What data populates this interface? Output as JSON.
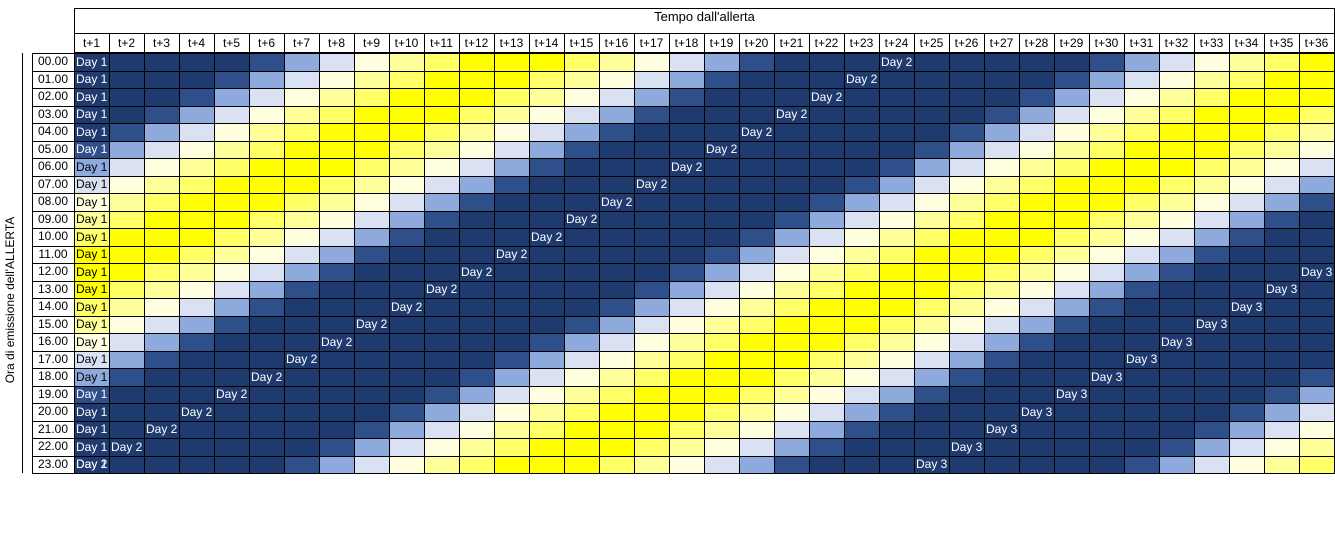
{
  "title": "Tempo dall'allerta",
  "y_axis_label": "Ora di emissione dell'ALLERTA",
  "column_headers": [
    "t+1",
    "t+2",
    "t+3",
    "t+4",
    "t+5",
    "t+6",
    "t+7",
    "t+8",
    "t+9",
    "t+10",
    "t+11",
    "t+12",
    "t+13",
    "t+14",
    "t+15",
    "t+16",
    "t+17",
    "t+18",
    "t+19",
    "t+20",
    "t+21",
    "t+22",
    "t+23",
    "t+24",
    "t+25",
    "t+26",
    "t+27",
    "t+28",
    "t+29",
    "t+30",
    "t+31",
    "t+32",
    "t+33",
    "t+34",
    "t+35",
    "t+36"
  ],
  "row_headers": [
    "00.00",
    "01.00",
    "02.00",
    "03.00",
    "04.00",
    "05.00",
    "06.00",
    "07.00",
    "08.00",
    "09.00",
    "10.00",
    "11.00",
    "12.00",
    "13.00",
    "14.00",
    "15.00",
    "16.00",
    "17.00",
    "18.00",
    "19.00",
    "20.00",
    "21.00",
    "22.00",
    "23.00"
  ],
  "day_labels": [
    "Day 1",
    "Day 2",
    "Day 3"
  ],
  "colors": {
    "hour_shades": [
      "#1f3a6e",
      "#1f3a6e",
      "#1f3a6e",
      "#1f3a6e",
      "#1f3a6e",
      "#1f3a6e",
      "#1f3a6e",
      "#1f3a6e",
      "#1f3a6e",
      "#1f3a6e",
      "#1f3a6e",
      "#1f3a6e",
      "#1f3a6e",
      "#1f3a6e",
      "#1f3a6e",
      "#1f3a6e",
      "#1f3a6e",
      "#1f3a6e",
      "#1f3a6e",
      "#1f3a6e",
      "#1f3a6e",
      "#1f3a6e",
      "#1f3a6e",
      "#1f3a6e"
    ],
    "border": "#000000",
    "text_light": "#ffffff",
    "text_dark": "#000000"
  }
}
